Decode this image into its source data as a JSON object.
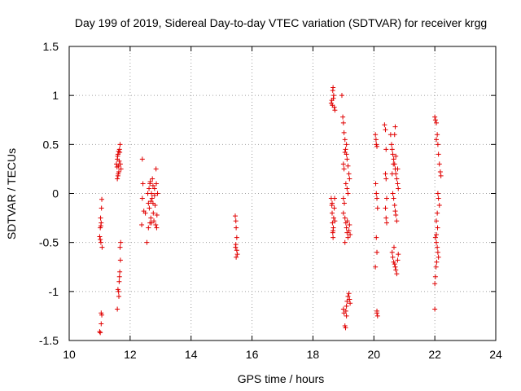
{
  "chart_data": {
    "type": "scatter",
    "title": "Day 199 of 2019, Sidereal Day-to-day VTEC variation (SDTVAR) for receiver krgg",
    "xlabel": "GPS time / hours",
    "ylabel": "SDTVAR / TECUs",
    "xlim": [
      10,
      24
    ],
    "ylim": [
      -1.5,
      1.5
    ],
    "xticks": [
      10,
      12,
      14,
      16,
      18,
      20,
      22,
      24
    ],
    "yticks": [
      -1.5,
      -1,
      -0.5,
      0,
      0.5,
      1,
      1.5
    ],
    "xtick_labels": [
      "10",
      "12",
      "14",
      "16",
      "18",
      "20",
      "22",
      "24"
    ],
    "ytick_labels": [
      "-1.5",
      "-1",
      "-0.5",
      "0",
      "0.5",
      "1",
      "1.5"
    ],
    "grid": true,
    "marker": "plus",
    "color": "#e00000",
    "series": [
      {
        "name": "SDTVAR",
        "points": [
          [
            11.0,
            -1.41
          ],
          [
            11.02,
            -1.42
          ],
          [
            11.05,
            -1.33
          ],
          [
            11.05,
            -1.22
          ],
          [
            11.07,
            -1.24
          ],
          [
            11.0,
            -0.44
          ],
          [
            11.02,
            -0.47
          ],
          [
            11.04,
            -0.33
          ],
          [
            11.05,
            -0.3
          ],
          [
            11.03,
            -0.25
          ],
          [
            11.06,
            -0.15
          ],
          [
            11.07,
            -0.06
          ],
          [
            11.08,
            -0.55
          ],
          [
            11.04,
            -0.5
          ],
          [
            11.02,
            -0.35
          ],
          [
            11.55,
            0.3
          ],
          [
            11.57,
            0.27
          ],
          [
            11.58,
            0.35
          ],
          [
            11.6,
            0.4
          ],
          [
            11.62,
            0.28
          ],
          [
            11.63,
            0.22
          ],
          [
            11.64,
            0.33
          ],
          [
            11.65,
            0.45
          ],
          [
            11.66,
            0.42
          ],
          [
            11.67,
            0.5
          ],
          [
            11.68,
            0.3
          ],
          [
            11.7,
            0.25
          ],
          [
            11.58,
            0.15
          ],
          [
            11.6,
            0.18
          ],
          [
            11.61,
            0.2
          ],
          [
            11.59,
            0.38
          ],
          [
            11.62,
            0.43
          ],
          [
            11.6,
            -0.98
          ],
          [
            11.62,
            -1.0
          ],
          [
            11.58,
            -1.18
          ],
          [
            11.63,
            -1.05
          ],
          [
            11.64,
            -0.9
          ],
          [
            11.65,
            -0.85
          ],
          [
            11.66,
            -0.8
          ],
          [
            11.68,
            -0.68
          ],
          [
            11.67,
            -0.55
          ],
          [
            11.69,
            -0.5
          ],
          [
            12.4,
            0.35
          ],
          [
            12.42,
            0.1
          ],
          [
            12.4,
            -0.05
          ],
          [
            12.45,
            -0.18
          ],
          [
            12.38,
            -0.32
          ],
          [
            12.5,
            -0.2
          ],
          [
            12.55,
            -0.5
          ],
          [
            12.58,
            0.0
          ],
          [
            12.6,
            -0.1
          ],
          [
            12.62,
            0.05
          ],
          [
            12.63,
            -0.15
          ],
          [
            12.65,
            -0.3
          ],
          [
            12.66,
            0.12
          ],
          [
            12.68,
            -0.25
          ],
          [
            12.7,
            0.0
          ],
          [
            12.72,
            -0.05
          ],
          [
            12.73,
            0.15
          ],
          [
            12.75,
            -0.1
          ],
          [
            12.76,
            -0.2
          ],
          [
            12.78,
            -0.28
          ],
          [
            12.8,
            0.05
          ],
          [
            12.82,
            -0.12
          ],
          [
            12.84,
            -0.32
          ],
          [
            12.85,
            0.25
          ],
          [
            12.86,
            0.1
          ],
          [
            12.87,
            -0.35
          ],
          [
            12.88,
            -0.22
          ],
          [
            12.9,
            0.0
          ],
          [
            12.7,
            -0.3
          ],
          [
            12.6,
            -0.35
          ],
          [
            12.65,
            0.1
          ],
          [
            12.8,
            -0.02
          ],
          [
            12.75,
            0.08
          ],
          [
            12.68,
            -0.08
          ],
          [
            15.45,
            -0.23
          ],
          [
            15.47,
            -0.28
          ],
          [
            15.48,
            -0.35
          ],
          [
            15.5,
            -0.45
          ],
          [
            15.46,
            -0.55
          ],
          [
            15.5,
            -0.58
          ],
          [
            15.52,
            -0.62
          ],
          [
            15.48,
            -0.65
          ],
          [
            15.47,
            -0.52
          ],
          [
            18.6,
            0.92
          ],
          [
            18.62,
            0.95
          ],
          [
            18.65,
            1.05
          ],
          [
            18.66,
            1.08
          ],
          [
            18.68,
            1.0
          ],
          [
            18.7,
            0.88
          ],
          [
            18.72,
            0.85
          ],
          [
            18.67,
            0.97
          ],
          [
            18.64,
            0.9
          ],
          [
            18.6,
            -0.05
          ],
          [
            18.62,
            -0.12
          ],
          [
            18.63,
            -0.2
          ],
          [
            18.64,
            -0.3
          ],
          [
            18.65,
            -0.4
          ],
          [
            18.66,
            -0.45
          ],
          [
            18.67,
            -0.35
          ],
          [
            18.68,
            -0.25
          ],
          [
            18.7,
            -0.15
          ],
          [
            18.71,
            -0.05
          ],
          [
            18.72,
            -0.28
          ],
          [
            18.66,
            -0.38
          ],
          [
            18.63,
            -0.1
          ],
          [
            18.95,
            1.0
          ],
          [
            18.98,
            0.78
          ],
          [
            19.0,
            0.72
          ],
          [
            19.02,
            0.62
          ],
          [
            19.05,
            0.55
          ],
          [
            19.07,
            0.45
          ],
          [
            19.1,
            0.4
          ],
          [
            19.12,
            0.35
          ],
          [
            19.15,
            0.28
          ],
          [
            19.18,
            0.2
          ],
          [
            19.2,
            0.15
          ],
          [
            19.0,
            0.3
          ],
          [
            19.05,
            0.42
          ],
          [
            19.1,
            0.5
          ],
          [
            19.02,
            0.25
          ],
          [
            19.08,
            0.1
          ],
          [
            19.15,
            0.0
          ],
          [
            19.12,
            0.05
          ],
          [
            19.0,
            -0.05
          ],
          [
            19.03,
            -0.1
          ],
          [
            19.05,
            -0.25
          ],
          [
            19.08,
            -0.3
          ],
          [
            19.1,
            -0.35
          ],
          [
            19.12,
            -0.4
          ],
          [
            19.15,
            -0.45
          ],
          [
            19.18,
            -0.38
          ],
          [
            19.2,
            -0.32
          ],
          [
            19.22,
            -0.42
          ],
          [
            19.05,
            -0.5
          ],
          [
            19.0,
            -0.2
          ],
          [
            19.13,
            -0.28
          ],
          [
            19.0,
            -1.18
          ],
          [
            19.02,
            -1.22
          ],
          [
            19.05,
            -1.35
          ],
          [
            19.07,
            -1.37
          ],
          [
            19.08,
            -1.2
          ],
          [
            19.1,
            -1.15
          ],
          [
            19.12,
            -1.1
          ],
          [
            19.15,
            -1.05
          ],
          [
            19.18,
            -1.02
          ],
          [
            19.2,
            -1.08
          ],
          [
            19.22,
            -1.12
          ],
          [
            19.1,
            -1.25
          ],
          [
            20.05,
            0.6
          ],
          [
            20.07,
            0.55
          ],
          [
            20.08,
            0.5
          ],
          [
            20.1,
            0.48
          ],
          [
            20.06,
            0.1
          ],
          [
            20.08,
            0.0
          ],
          [
            20.1,
            -0.05
          ],
          [
            20.12,
            -0.15
          ],
          [
            20.08,
            -0.45
          ],
          [
            20.1,
            -0.6
          ],
          [
            20.05,
            -0.75
          ],
          [
            20.1,
            -1.2
          ],
          [
            20.12,
            -1.25
          ],
          [
            20.1,
            -1.22
          ],
          [
            20.35,
            0.7
          ],
          [
            20.38,
            0.65
          ],
          [
            20.4,
            0.45
          ],
          [
            20.38,
            0.2
          ],
          [
            20.4,
            0.15
          ],
          [
            20.42,
            -0.05
          ],
          [
            20.38,
            -0.15
          ],
          [
            20.4,
            -0.25
          ],
          [
            20.42,
            -0.3
          ],
          [
            20.55,
            0.6
          ],
          [
            20.58,
            0.5
          ],
          [
            20.6,
            0.45
          ],
          [
            20.62,
            0.4
          ],
          [
            20.65,
            0.35
          ],
          [
            20.68,
            0.3
          ],
          [
            20.7,
            0.25
          ],
          [
            20.72,
            0.2
          ],
          [
            20.75,
            0.15
          ],
          [
            20.78,
            0.1
          ],
          [
            20.8,
            0.05
          ],
          [
            20.62,
            0.0
          ],
          [
            20.65,
            -0.05
          ],
          [
            20.68,
            -0.12
          ],
          [
            20.7,
            -0.18
          ],
          [
            20.72,
            -0.22
          ],
          [
            20.75,
            -0.28
          ],
          [
            20.6,
            0.2
          ],
          [
            20.64,
            0.3
          ],
          [
            20.72,
            0.38
          ],
          [
            20.78,
            0.25
          ],
          [
            20.68,
            0.6
          ],
          [
            20.7,
            0.68
          ],
          [
            20.6,
            -0.6
          ],
          [
            20.62,
            -0.65
          ],
          [
            20.65,
            -0.7
          ],
          [
            20.68,
            -0.72
          ],
          [
            20.7,
            -0.75
          ],
          [
            20.72,
            -0.78
          ],
          [
            20.75,
            -0.82
          ],
          [
            20.78,
            -0.68
          ],
          [
            20.8,
            -0.62
          ],
          [
            20.66,
            -0.55
          ],
          [
            22.0,
            0.78
          ],
          [
            22.02,
            0.75
          ],
          [
            22.05,
            0.72
          ],
          [
            22.08,
            0.6
          ],
          [
            22.1,
            0.5
          ],
          [
            22.12,
            0.4
          ],
          [
            22.15,
            0.3
          ],
          [
            22.18,
            0.22
          ],
          [
            22.2,
            0.18
          ],
          [
            22.05,
            0.55
          ],
          [
            22.1,
            0.0
          ],
          [
            22.12,
            -0.05
          ],
          [
            22.15,
            -0.12
          ],
          [
            22.08,
            -0.2
          ],
          [
            22.05,
            -0.28
          ],
          [
            22.02,
            -0.45
          ],
          [
            22.05,
            -0.5
          ],
          [
            22.08,
            -0.55
          ],
          [
            22.1,
            -0.6
          ],
          [
            22.12,
            -0.65
          ],
          [
            22.06,
            -0.7
          ],
          [
            22.04,
            -0.75
          ],
          [
            22.02,
            -0.85
          ],
          [
            22.0,
            -0.92
          ],
          [
            22.05,
            -0.42
          ],
          [
            22.09,
            -0.35
          ],
          [
            22.0,
            -1.18
          ]
        ]
      }
    ]
  }
}
